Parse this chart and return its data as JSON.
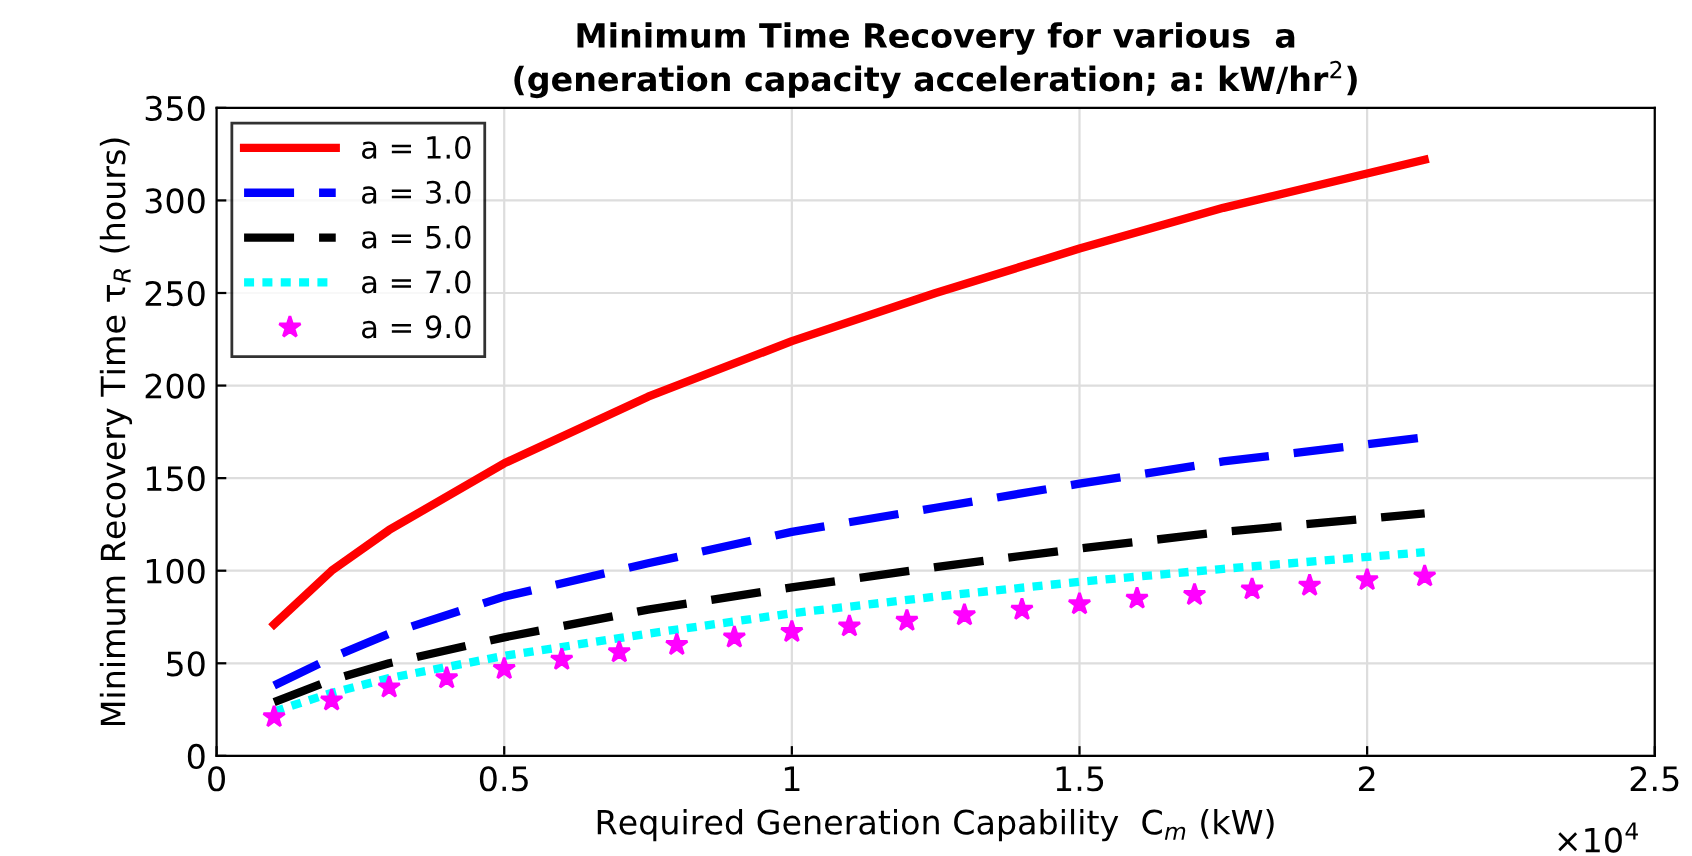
{
  "chart_data": {
    "type": "line",
    "title": "Minimum Time Recovery for various  a\n(generation capacity acceleration; a: kW/hr$^{2}$)",
    "xlabel": "Required Generation Capability  C$_{m}$ (kW)",
    "ylabel": "Minimum Recovery Time τ$_{R}$ (hours)",
    "xlim": [
      0,
      2.5
    ],
    "xticks": [
      0,
      0.5,
      1,
      1.5,
      2,
      2.5
    ],
    "ylim": [
      0,
      350
    ],
    "yticks": [
      0,
      50,
      100,
      150,
      200,
      250,
      300,
      350
    ],
    "annotations": [
      "×10$^{4}$"
    ],
    "grid": true,
    "legend": "top left",
    "series": [
      {
        "name": "a = 1.0",
        "color": "#ff0000",
        "line_style": "solid",
        "marker": "none",
        "x": [
          0.1,
          0.2,
          0.3,
          0.5,
          0.75,
          1.0,
          1.25,
          1.5,
          1.75,
          2.1
        ],
        "values": [
          71,
          100,
          122,
          158,
          194,
          224,
          250,
          274,
          296,
          322
        ]
      },
      {
        "name": "a = 3.0",
        "color": "#0000ff",
        "line_style": "dashed",
        "marker": "none",
        "x": [
          0.1,
          0.2,
          0.3,
          0.5,
          0.75,
          1.0,
          1.25,
          1.5,
          1.75,
          2.1
        ],
        "values": [
          38,
          53,
          66,
          86,
          104,
          121,
          134,
          147,
          159,
          172
        ]
      },
      {
        "name": "a = 5.0",
        "color": "#000000",
        "line_style": "dashed",
        "marker": "none",
        "x": [
          0.1,
          0.2,
          0.3,
          0.5,
          0.75,
          1.0,
          1.25,
          1.5,
          1.75,
          2.1
        ],
        "values": [
          29,
          41,
          50,
          64,
          79,
          91,
          102,
          112,
          121,
          131
        ]
      },
      {
        "name": "a = 7.0",
        "color": "#00ffff",
        "line_style": "dotted",
        "marker": "none",
        "x": [
          0.1,
          0.2,
          0.3,
          0.5,
          0.75,
          1.0,
          1.25,
          1.5,
          1.75,
          2.1
        ],
        "values": [
          24,
          34,
          42,
          54,
          66,
          77,
          86,
          94,
          101,
          110
        ]
      },
      {
        "name": "a = 9.0",
        "type": "scatter",
        "color": "#ff00ff",
        "marker": "star",
        "x": [
          0.1,
          0.2,
          0.3,
          0.4,
          0.5,
          0.6,
          0.7,
          0.8,
          0.9,
          1.0,
          1.1,
          1.2,
          1.3,
          1.4,
          1.5,
          1.6,
          1.7,
          1.8,
          1.9,
          2.0,
          2.1
        ],
        "values": [
          21,
          30,
          37,
          42,
          47,
          52,
          56,
          60,
          64,
          67,
          70,
          73,
          76,
          79,
          82,
          85,
          87,
          90,
          92,
          95,
          97
        ]
      }
    ]
  }
}
